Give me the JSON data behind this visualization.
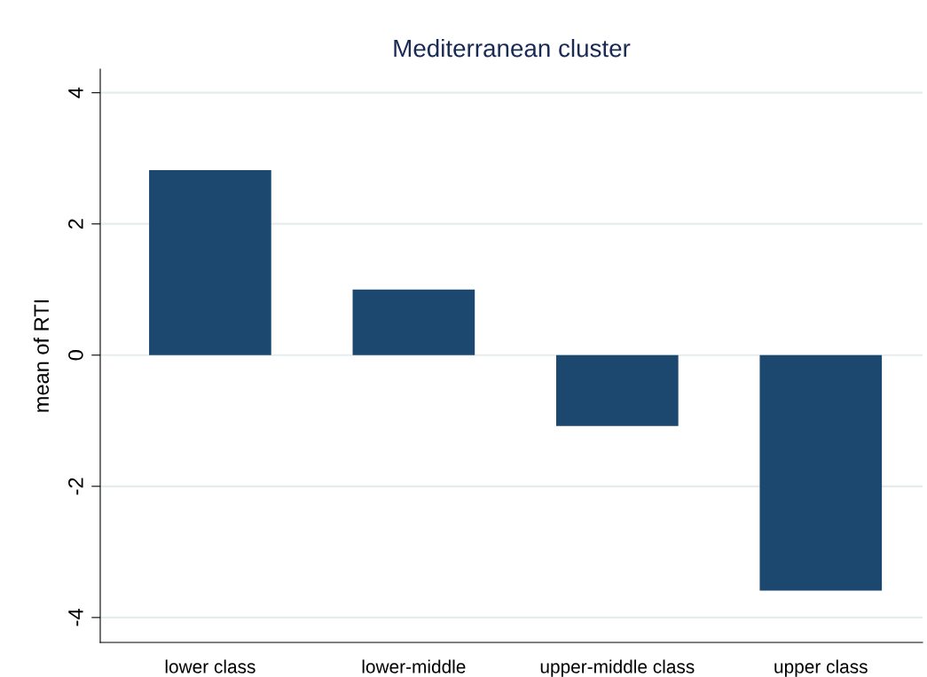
{
  "chart_data": {
    "type": "bar",
    "title": "Mediterranean cluster",
    "ylabel": "mean of RTI",
    "categories": [
      "lower class",
      "lower-middle",
      "upper-middle class",
      "upper class"
    ],
    "values": [
      2.82,
      1.0,
      -1.08,
      -3.59
    ],
    "color": "#1c476e",
    "ylim": [
      -4.38,
      4.36
    ],
    "yticks": [
      -4,
      -2,
      0,
      2,
      4
    ],
    "grid": "y"
  }
}
